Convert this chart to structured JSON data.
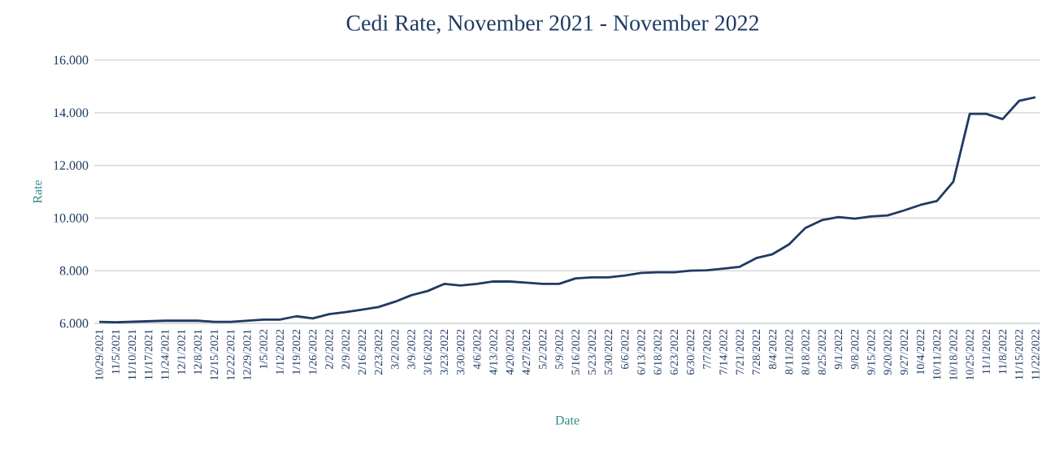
{
  "chart_data": {
    "type": "line",
    "title": "Cedi Rate, November 2021 - November 2022",
    "xlabel": "Date",
    "ylabel": "Rate",
    "categories": [
      "10/29/2021",
      "11/5/2021",
      "11/10/2021",
      "11/17/2021",
      "11/24/2021",
      "12/1/2021",
      "12/8/2021",
      "12/15/2021",
      "12/22/2021",
      "12/29/2021",
      "1/5/2022",
      "1/12/2022",
      "1/19/2022",
      "1/26/2022",
      "2/2/2022",
      "2/9/2022",
      "2/16/2022",
      "2/23/2022",
      "3/2/2022",
      "3/9/2022",
      "3/16/2022",
      "3/23/2022",
      "3/30/2022",
      "4/6/2022",
      "4/13/2022",
      "4/20/2022",
      "4/27/2022",
      "5/2/2022",
      "5/9/2022",
      "5/16/2022",
      "5/23/2022",
      "5/30/2022",
      "6/6/2022",
      "6/13/2022",
      "6/18/2022",
      "6/23/2022",
      "6/30/2022",
      "7/7/2022",
      "7/14/2022",
      "7/21/2022",
      "7/28/2022",
      "8/4/2022",
      "8/11/2022",
      "8/18/2022",
      "8/25/2022",
      "9/1/2022",
      "9/8/2022",
      "9/15/2022",
      "9/20/2022",
      "9/27/2022",
      "10/4/2022",
      "10/11/2022",
      "10/18/2022",
      "10/25/2022",
      "11/1/2022",
      "11/8/2022",
      "11/15/2022",
      "11/22/2022"
    ],
    "series": [
      {
        "color": "#1f3b63",
        "values": [
          6.06,
          6.04,
          6.06,
          6.08,
          6.1,
          6.1,
          6.1,
          6.06,
          6.06,
          6.1,
          6.14,
          6.14,
          6.27,
          6.19,
          6.35,
          6.43,
          6.52,
          6.62,
          6.82,
          7.07,
          7.23,
          7.5,
          7.44,
          7.5,
          7.59,
          7.59,
          7.55,
          7.5,
          7.5,
          7.71,
          7.75,
          7.75,
          7.82,
          7.92,
          7.94,
          7.94,
          8.0,
          8.02,
          8.08,
          8.15,
          8.48,
          8.63,
          9.0,
          9.63,
          9.92,
          10.04,
          9.98,
          10.06,
          10.1,
          10.29,
          10.5,
          10.65,
          11.38,
          13.96,
          13.96,
          13.76,
          14.45,
          14.59
        ]
      }
    ],
    "ylim": [
      6,
      16
    ],
    "yticks": [
      {
        "value": 6,
        "label": "6.000"
      },
      {
        "value": 8,
        "label": "8.000"
      },
      {
        "value": 10,
        "label": "10.000"
      },
      {
        "value": 12,
        "label": "12.000"
      },
      {
        "value": 14,
        "label": "14.000"
      },
      {
        "value": 16,
        "label": "16.000"
      }
    ],
    "grid": "y",
    "legend": false,
    "marker": "none",
    "line_style": "solid"
  }
}
